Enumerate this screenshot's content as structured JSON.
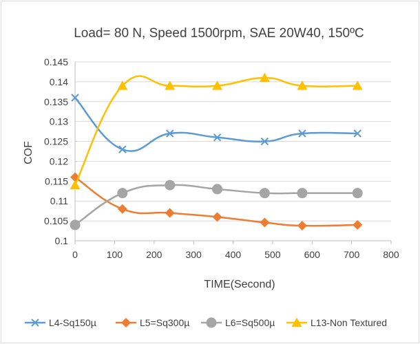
{
  "chart_data": {
    "type": "line",
    "title": "Load= 80 N, Speed 1500rpm, SAE 20W40, 150ºC",
    "xlabel": "TIME(Second)",
    "ylabel": "COF",
    "xlim": [
      0,
      800
    ],
    "ylim": [
      0.1,
      0.145
    ],
    "x_ticks": [
      "0",
      "100",
      "200",
      "300",
      "400",
      "500",
      "600",
      "700",
      "800"
    ],
    "y_ticks": [
      "0.1",
      "0.105",
      "0.11",
      "0.115",
      "0.12",
      "0.125",
      "0.13",
      "0.135",
      "0.14",
      "0.145"
    ],
    "grid": "horizontal",
    "legend": "bottom",
    "x": [
      0,
      120,
      240,
      360,
      480,
      575,
      715
    ],
    "series": [
      {
        "name": "L4-Sq150µ",
        "values": [
          0.136,
          0.123,
          0.127,
          0.126,
          0.125,
          0.127,
          0.127
        ],
        "color": "#5b9bd5",
        "marker": "x"
      },
      {
        "name": "L5=Sq300µ",
        "values": [
          0.116,
          0.108,
          0.107,
          0.106,
          0.1046,
          0.1038,
          0.104
        ],
        "color": "#ed7d31",
        "marker": "diamond"
      },
      {
        "name": "L6=Sq500µ",
        "values": [
          0.104,
          0.112,
          0.114,
          0.113,
          0.112,
          0.112,
          0.112
        ],
        "color": "#a5a5a5",
        "marker": "circle"
      },
      {
        "name": "L13-Non Textured",
        "values": [
          0.114,
          0.139,
          0.139,
          0.139,
          0.141,
          0.139,
          0.139
        ],
        "color": "#ffc000",
        "marker": "triangle"
      }
    ]
  }
}
